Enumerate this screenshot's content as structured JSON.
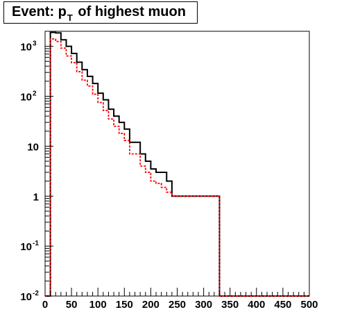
{
  "title": {
    "prefix": "Event: p",
    "subscript": "T",
    "suffix": " of highest muon"
  },
  "chart_data": {
    "type": "histogram",
    "title": "Event: p_T of highest muon",
    "xlabel": "",
    "ylabel": "",
    "xlim": [
      0,
      500
    ],
    "ylim": [
      0.01,
      2000
    ],
    "yscale": "log",
    "grid": false,
    "bin_width": 10,
    "x_ticks": [
      "0",
      "50",
      "100",
      "150",
      "200",
      "250",
      "300",
      "350",
      "400",
      "450",
      "500"
    ],
    "y_ticks": [
      {
        "base": "10",
        "exp": "-2"
      },
      {
        "base": "10",
        "exp": "-1"
      },
      {
        "base": "1",
        "exp": ""
      },
      {
        "base": "10",
        "exp": ""
      },
      {
        "base": "10",
        "exp": "2"
      },
      {
        "base": "10",
        "exp": "3"
      }
    ],
    "series": [
      {
        "color": "#000000",
        "style": "solid",
        "values": [
          0,
          1900,
          1850,
          1350,
          1000,
          720,
          480,
          340,
          250,
          180,
          115,
          85,
          55,
          40,
          30,
          22,
          12,
          12,
          7,
          5,
          3.5,
          3,
          3,
          2,
          1,
          1,
          1,
          1,
          1,
          1,
          1,
          1,
          1,
          0,
          0,
          0,
          0,
          0,
          0,
          0,
          0,
          0,
          0,
          0,
          0,
          0,
          0,
          0,
          0,
          0
        ]
      },
      {
        "color": "#ff0000",
        "style": "dashed",
        "values": [
          0,
          1400,
          1250,
          920,
          640,
          470,
          310,
          210,
          160,
          110,
          75,
          52,
          35,
          25,
          18,
          13,
          7,
          7,
          4,
          3,
          2,
          1.8,
          1.5,
          1.2,
          1,
          1,
          1,
          1,
          1,
          1,
          1,
          1,
          1,
          0,
          0,
          0,
          0,
          0,
          0,
          0,
          0,
          0,
          0,
          0,
          0,
          0,
          0,
          0,
          0,
          0
        ]
      }
    ]
  }
}
